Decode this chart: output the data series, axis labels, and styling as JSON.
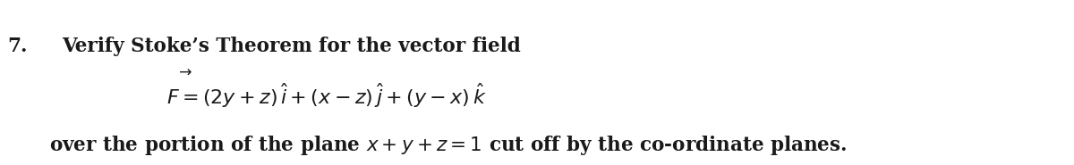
{
  "background_color": "#ffffff",
  "text_color": "#1a1a1a",
  "number": "7.",
  "line1": "Verify Stoke’s Theorem for the vector field",
  "line2_math": "$F = (2y + z)\\,\\hat{i} + (x - z)\\,\\hat{j} + (y - x)\\,\\hat{k}$",
  "line3_pre": "over the portion of the plane ",
  "line3_math": "$x + y + z = 1$",
  "line3_post": " cut off by the co-ordinate planes.",
  "font_size": 15.5,
  "font_size_eq": 15.5
}
